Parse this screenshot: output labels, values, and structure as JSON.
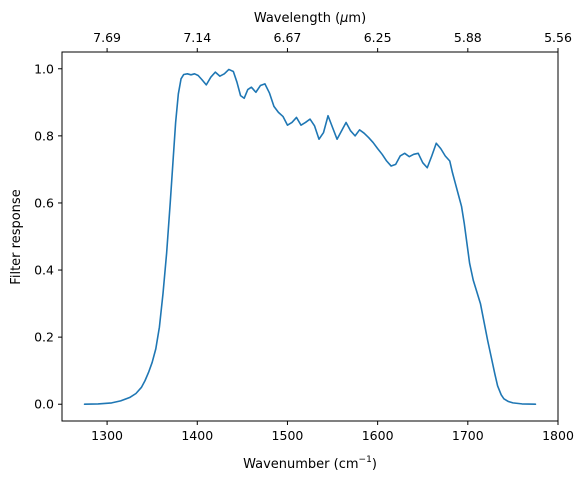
{
  "chart_data": {
    "type": "line",
    "title": "",
    "xlabel": "Wavenumber (cm",
    "xlabel_sup": "−1",
    "xlabel_tail": ")",
    "ylabel": "Filter response",
    "top_xlabel": "Wavelength (",
    "top_xlabel_mu": "μ",
    "top_xlabel_tail": "m)",
    "xlim": [
      1250,
      1800
    ],
    "ylim": [
      -0.05,
      1.05
    ],
    "grid": false,
    "colors": {
      "line": "#1f77b4",
      "axes": "#000000"
    },
    "x_ticks": [
      1300,
      1400,
      1500,
      1600,
      1700,
      1800
    ],
    "y_ticks": [
      0.0,
      0.2,
      0.4,
      0.6,
      0.8,
      1.0
    ],
    "x_tick_labels": [
      "1300",
      "1400",
      "1500",
      "1600",
      "1700",
      "1800"
    ],
    "y_tick_labels": [
      "0.0",
      "0.2",
      "0.4",
      "0.6",
      "0.8",
      "1.0"
    ],
    "top_ticks": [
      {
        "label": "7.69",
        "x": 1300
      },
      {
        "label": "7.14",
        "x": 1400
      },
      {
        "label": "6.67",
        "x": 1500
      },
      {
        "label": "6.25",
        "x": 1600
      },
      {
        "label": "5.88",
        "x": 1700
      },
      {
        "label": "5.56",
        "x": 1800
      }
    ],
    "series": [
      {
        "x": [
          1275,
          1290,
          1305,
          1315,
          1325,
          1332,
          1338,
          1342,
          1346,
          1350,
          1354,
          1358,
          1362,
          1366,
          1370,
          1373,
          1376,
          1379,
          1382,
          1385,
          1389,
          1393,
          1397,
          1401,
          1405,
          1410,
          1415,
          1420,
          1425,
          1430,
          1435,
          1440,
          1444,
          1448,
          1452,
          1456,
          1460,
          1465,
          1470,
          1475,
          1480,
          1485,
          1490,
          1495,
          1500,
          1505,
          1510,
          1515,
          1520,
          1525,
          1530,
          1535,
          1540,
          1545,
          1550,
          1555,
          1560,
          1565,
          1570,
          1575,
          1580,
          1585,
          1590,
          1595,
          1600,
          1605,
          1610,
          1615,
          1620,
          1625,
          1630,
          1635,
          1640,
          1645,
          1650,
          1655,
          1660,
          1665,
          1670,
          1675,
          1680,
          1683,
          1686,
          1690,
          1693,
          1696,
          1699,
          1702,
          1706,
          1710,
          1714,
          1718,
          1722,
          1726,
          1730,
          1733,
          1737,
          1740,
          1745,
          1750,
          1760,
          1775
        ],
        "y": [
          0.0,
          0.001,
          0.004,
          0.01,
          0.02,
          0.032,
          0.05,
          0.07,
          0.095,
          0.125,
          0.165,
          0.23,
          0.33,
          0.45,
          0.6,
          0.72,
          0.84,
          0.925,
          0.97,
          0.983,
          0.985,
          0.982,
          0.985,
          0.98,
          0.968,
          0.952,
          0.975,
          0.99,
          0.978,
          0.985,
          0.998,
          0.992,
          0.96,
          0.92,
          0.912,
          0.938,
          0.945,
          0.93,
          0.95,
          0.955,
          0.928,
          0.888,
          0.87,
          0.858,
          0.832,
          0.84,
          0.855,
          0.832,
          0.84,
          0.85,
          0.83,
          0.79,
          0.81,
          0.86,
          0.825,
          0.79,
          0.815,
          0.84,
          0.815,
          0.8,
          0.818,
          0.808,
          0.795,
          0.78,
          0.762,
          0.745,
          0.725,
          0.71,
          0.715,
          0.74,
          0.748,
          0.738,
          0.745,
          0.748,
          0.72,
          0.705,
          0.74,
          0.778,
          0.762,
          0.74,
          0.725,
          0.69,
          0.66,
          0.62,
          0.59,
          0.54,
          0.48,
          0.42,
          0.37,
          0.335,
          0.3,
          0.245,
          0.19,
          0.14,
          0.09,
          0.055,
          0.028,
          0.016,
          0.008,
          0.004,
          0.001,
          0.0
        ]
      }
    ]
  }
}
